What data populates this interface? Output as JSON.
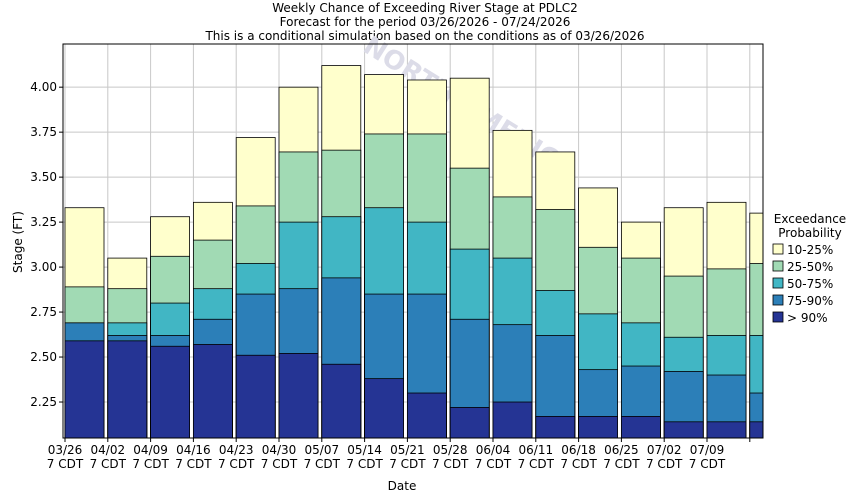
{
  "title": {
    "line1": "Weekly Chance of Exceeding River Stage at PDLC2",
    "line2": "Forecast for the period 03/26/2026 - 07/24/2026",
    "line3": "This is a conditional simulation based on the conditions as of 03/26/2026"
  },
  "watermark": "NORTH AMERICA",
  "colors": {
    "band_10_25": "#ffffcc",
    "band_25_50": "#a1dab4",
    "band_50_75": "#41b6c4",
    "band_75_90": "#2c7fb8",
    "band_gt_90": "#253494"
  },
  "chart_data": {
    "type": "bar",
    "subtype": "stacked-exceedance",
    "xlabel": "Date",
    "ylabel": "Stage (FT)",
    "ylim": [
      2.05,
      4.24
    ],
    "yticks": [
      "2.25",
      "2.50",
      "2.75",
      "3.00",
      "3.25",
      "3.50",
      "3.75",
      "4.00"
    ],
    "grid": true,
    "categories": [
      "03/26",
      "04/02",
      "04/09",
      "04/16",
      "04/23",
      "04/30",
      "05/07",
      "05/14",
      "05/21",
      "05/28",
      "06/04",
      "06/11",
      "06/18",
      "06/25",
      "07/02",
      "07/09",
      ""
    ],
    "tick_line2": "7 CDT",
    "series": [
      {
        "name": "10-25%",
        "values": [
          3.33,
          3.05,
          3.28,
          3.36,
          3.72,
          4.0,
          4.12,
          4.07,
          4.04,
          4.05,
          3.76,
          3.64,
          3.44,
          3.25,
          3.33,
          3.36,
          3.3
        ]
      },
      {
        "name": "25-50%",
        "values": [
          2.89,
          2.88,
          3.06,
          3.15,
          3.34,
          3.64,
          3.65,
          3.74,
          3.74,
          3.55,
          3.39,
          3.32,
          3.11,
          3.05,
          2.95,
          2.99,
          3.02
        ]
      },
      {
        "name": "50-75%",
        "values": [
          2.69,
          2.69,
          2.8,
          2.88,
          3.02,
          3.25,
          3.28,
          3.33,
          3.25,
          3.1,
          3.05,
          2.87,
          2.74,
          2.69,
          2.61,
          2.62,
          2.62
        ]
      },
      {
        "name": "75-90%",
        "values": [
          2.69,
          2.62,
          2.62,
          2.71,
          2.85,
          2.88,
          2.94,
          2.85,
          2.85,
          2.71,
          2.68,
          2.62,
          2.43,
          2.45,
          2.42,
          2.4,
          2.3
        ]
      },
      {
        "name": "> 90%",
        "values": [
          2.59,
          2.59,
          2.56,
          2.57,
          2.51,
          2.52,
          2.46,
          2.38,
          2.3,
          2.22,
          2.25,
          2.17,
          2.17,
          2.17,
          2.14,
          2.14,
          2.14
        ]
      }
    ],
    "legend": {
      "title_line1": "Exceedance",
      "title_line2": "Probability",
      "placement": "right",
      "items": [
        "10-25%",
        "25-50%",
        "50-75%",
        "75-90%",
        "> 90%"
      ]
    }
  }
}
